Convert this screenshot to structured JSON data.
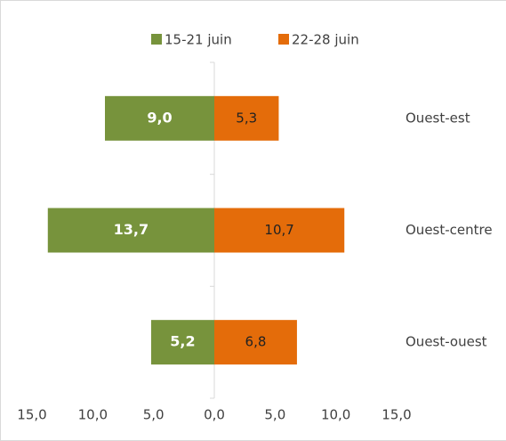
{
  "chart_data": {
    "type": "diverging-bar",
    "categories": [
      "Ouest-est",
      "Ouest-centre",
      "Ouest-ouest"
    ],
    "series": [
      {
        "name": "15-21 juin",
        "color": "#77933c",
        "direction": "left",
        "values": [
          9.0,
          13.7,
          5.2
        ],
        "value_labels": [
          "9,0",
          "13,7",
          "5,2"
        ]
      },
      {
        "name": "22-28 juin",
        "color": "#e46c0a",
        "direction": "right",
        "values": [
          5.3,
          10.7,
          6.8
        ],
        "value_labels": [
          "5,3",
          "10,7",
          "6,8"
        ]
      }
    ],
    "xlim": [
      -15,
      15
    ],
    "xticks": [
      {
        "value": -15,
        "label": "15,0"
      },
      {
        "value": -10,
        "label": "10,0"
      },
      {
        "value": -5,
        "label": "5,0"
      },
      {
        "value": 0,
        "label": "0,0"
      },
      {
        "value": 5,
        "label": "5,0"
      },
      {
        "value": 10,
        "label": "10,0"
      },
      {
        "value": 15,
        "label": "15,0"
      }
    ],
    "legend": "top"
  }
}
